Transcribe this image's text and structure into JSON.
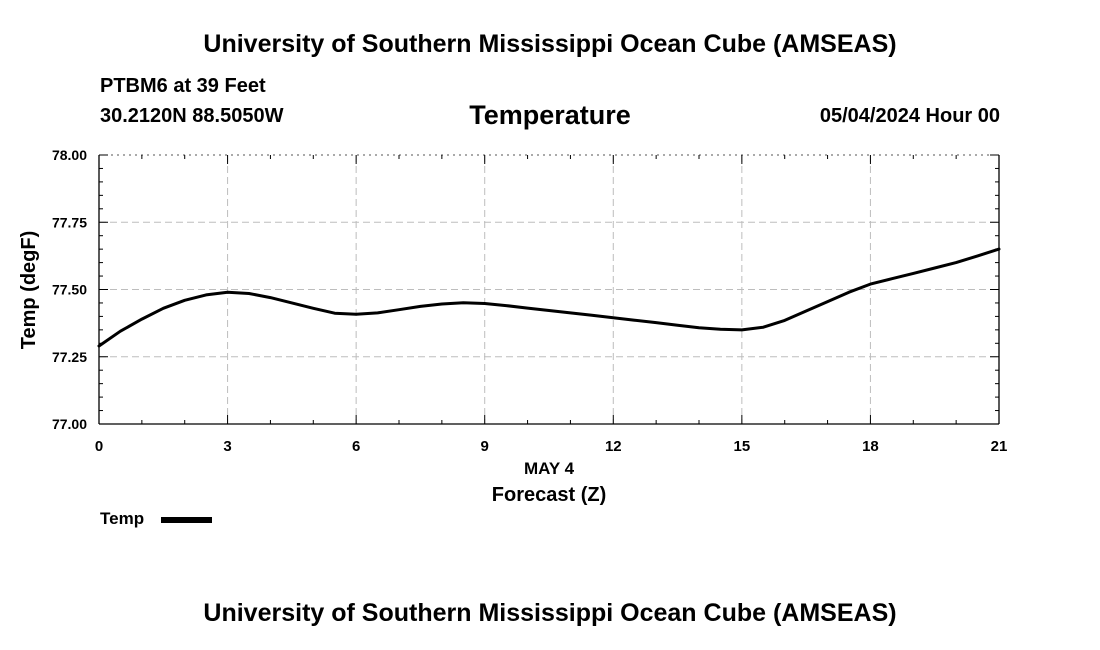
{
  "header": {
    "title": "University of Southern Mississippi Ocean Cube (AMSEAS)",
    "station": "PTBM6 at 39 Feet",
    "coordinates": "30.2120N  88.5050W",
    "variable": "Temperature",
    "datetime": "05/04/2024 Hour 00"
  },
  "footer": {
    "title": "University of Southern Mississippi Ocean Cube (AMSEAS)"
  },
  "legend": {
    "label": "Temp",
    "color": "#000000"
  },
  "chart_data": {
    "type": "line",
    "ylabel": "Temp (degF)",
    "xlabel": "Forecast (Z)",
    "date_label": "MAY 4",
    "xlim": [
      0,
      21
    ],
    "ylim": [
      77.0,
      78.0
    ],
    "xticks": [
      0,
      3,
      6,
      9,
      12,
      15,
      18,
      21
    ],
    "xtick_labels": [
      "0",
      "3",
      "6",
      "9",
      "12",
      "15",
      "18",
      "21"
    ],
    "yticks": [
      77.0,
      77.25,
      77.5,
      77.75,
      78.0
    ],
    "ytick_labels": [
      "77.00",
      "77.25",
      "77.50",
      "77.75",
      "78.00"
    ],
    "grid": true,
    "legend_position": "bottom-left",
    "series": [
      {
        "name": "Temp",
        "color": "#000000",
        "x": [
          0,
          0.5,
          1,
          1.5,
          2,
          2.5,
          3,
          3.5,
          4,
          4.5,
          5,
          5.5,
          6,
          6.5,
          7,
          7.5,
          8,
          8.5,
          9,
          9.5,
          10,
          10.5,
          11,
          11.5,
          12,
          12.5,
          13,
          13.5,
          14,
          14.5,
          15,
          15.5,
          16,
          16.5,
          17,
          17.5,
          18,
          18.5,
          19,
          19.5,
          20,
          20.5,
          21
        ],
        "values": [
          77.29,
          77.345,
          77.39,
          77.43,
          77.46,
          77.48,
          77.49,
          77.485,
          77.47,
          77.45,
          77.43,
          77.412,
          77.408,
          77.413,
          77.425,
          77.437,
          77.446,
          77.451,
          77.448,
          77.44,
          77.431,
          77.422,
          77.413,
          77.404,
          77.395,
          77.386,
          77.377,
          77.367,
          77.358,
          77.352,
          77.35,
          77.36,
          77.385,
          77.42,
          77.455,
          77.49,
          77.52,
          77.54,
          77.56,
          77.58,
          77.6,
          77.625,
          77.65
        ]
      }
    ]
  }
}
